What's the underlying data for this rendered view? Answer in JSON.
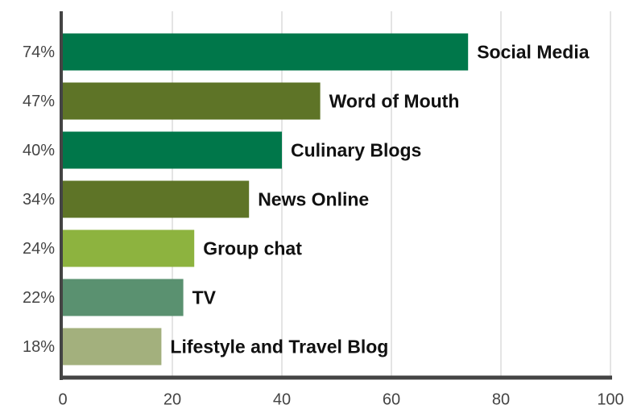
{
  "chart_data": {
    "type": "bar",
    "orientation": "horizontal",
    "categories": [
      "Social Media",
      "Word of Mouth",
      "Culinary Blogs",
      "News Online",
      "Group chat",
      "TV",
      "Lifestyle and Travel Blog"
    ],
    "values": [
      74,
      47,
      40,
      34,
      24,
      22,
      18
    ],
    "value_labels": [
      "74%",
      "47%",
      "40%",
      "34%",
      "24%",
      "22%",
      "18%"
    ],
    "colors": [
      "#00774a",
      "#5e7427",
      "#00774a",
      "#5e7427",
      "#8db33f",
      "#5a9170",
      "#a3b07d"
    ],
    "xlim": [
      0,
      100
    ],
    "xticks": [
      0,
      20,
      40,
      60,
      80,
      100
    ],
    "grid": true
  }
}
